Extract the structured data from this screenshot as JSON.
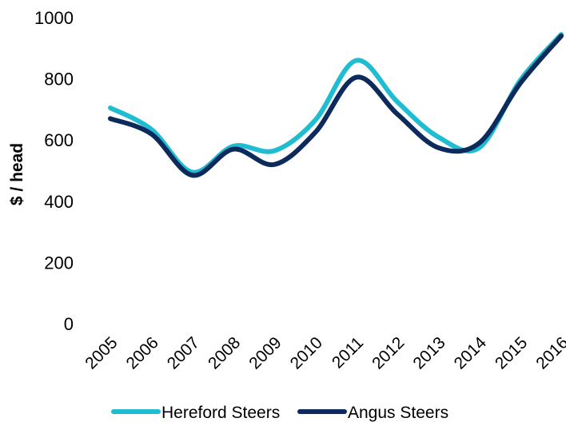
{
  "chart_data": {
    "type": "line",
    "title": "",
    "xlabel": "",
    "ylabel": "$ / head",
    "ylim": [
      0,
      1000
    ],
    "yticks": [
      0,
      200,
      400,
      600,
      800,
      1000
    ],
    "grid": false,
    "legend_position": "bottom",
    "categories": [
      "2005",
      "2006",
      "2007",
      "2008",
      "2009",
      "2010",
      "2011",
      "2012",
      "2013",
      "2014",
      "2015",
      "2016"
    ],
    "series": [
      {
        "name": "Hereford Steers",
        "color": "#1fbcd2",
        "values": [
          705,
          635,
          495,
          580,
          565,
          665,
          860,
          725,
          610,
          575,
          795,
          945
        ]
      },
      {
        "name": "Angus Steers",
        "color": "#0c2a5b",
        "values": [
          670,
          620,
          485,
          570,
          520,
          625,
          805,
          685,
          575,
          590,
          785,
          940
        ]
      }
    ]
  }
}
